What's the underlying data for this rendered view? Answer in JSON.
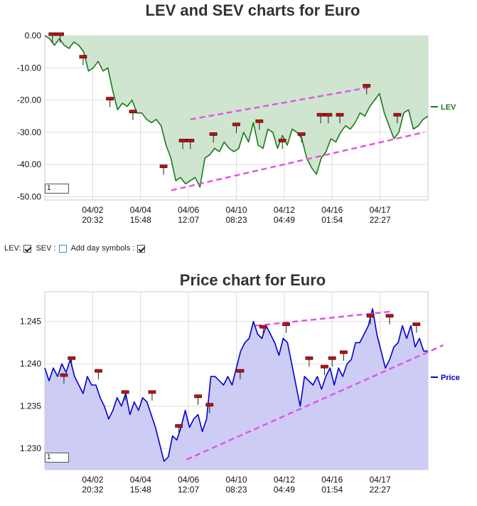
{
  "chart_data": [
    {
      "type": "line",
      "title": "LEV and SEV charts for Euro",
      "x_tick_labels": [
        [
          "04/02",
          "20:32"
        ],
        [
          "04/04",
          "15:48"
        ],
        [
          "04/06",
          "12:07"
        ],
        [
          "04/10",
          "08:23"
        ],
        [
          "04/12",
          "04:49"
        ],
        [
          "04/16",
          "01:54"
        ],
        [
          "04/17",
          "22:27"
        ]
      ],
      "y_tick_labels": [
        "0.00",
        "-10.00",
        "-20.00",
        "-30.00",
        "-40.00",
        "-50.00"
      ],
      "ylim": [
        -51,
        0
      ],
      "series": [
        {
          "name": "LEV",
          "color": "#1a7a1a",
          "fill": "#cfe5cf",
          "values": [
            0,
            -1,
            -3,
            -1,
            -3,
            -4,
            -2,
            -3,
            -5,
            -11,
            -10,
            -8,
            -11,
            -10,
            -17,
            -23,
            -21,
            -22,
            -20,
            -24,
            -24,
            -26,
            -27,
            -26,
            -28,
            -34,
            -38,
            -45,
            -44,
            -46,
            -45,
            -44,
            -47,
            -38,
            -37,
            -35,
            -36,
            -33,
            -35,
            -36,
            -35,
            -30,
            -33,
            -27,
            -34,
            -35,
            -29,
            -30,
            -35,
            -31,
            -34,
            -29,
            -30,
            -32,
            -38,
            -41,
            -43,
            -38,
            -36,
            -32,
            -33,
            -30,
            -28,
            -29,
            -27,
            -24,
            -25,
            -22,
            -20,
            -18,
            -24,
            -28,
            -32,
            -30,
            -24,
            -23,
            -29,
            -28,
            -26,
            -25
          ],
          "day_symbols": [
            [
              2,
              0
            ],
            [
              4,
              0
            ],
            [
              10,
              -7
            ],
            [
              17,
              -20
            ],
            [
              23,
              -24
            ],
            [
              31,
              -41
            ],
            [
              36,
              -33
            ],
            [
              38,
              -33
            ],
            [
              44,
              -31
            ],
            [
              50,
              -28
            ],
            [
              56,
              -27
            ],
            [
              62,
              -33
            ],
            [
              67,
              -31
            ],
            [
              72,
              -25
            ],
            [
              74,
              -25
            ],
            [
              77,
              -25
            ],
            [
              84,
              -16
            ],
            [
              92,
              -25
            ]
          ]
        }
      ],
      "trendlines": [
        {
          "from": [
            38,
            -26
          ],
          "to": [
            85,
            -16
          ]
        },
        {
          "from": [
            33,
            -48
          ],
          "to": [
            99,
            -30
          ]
        }
      ],
      "legend": {
        "position": "right",
        "label": "LEV"
      },
      "zoom_value": "1"
    },
    {
      "type": "line",
      "title": "Price chart for Euro",
      "x_tick_labels": [
        [
          "04/02",
          "20:32"
        ],
        [
          "04/04",
          "15:48"
        ],
        [
          "04/06",
          "12:07"
        ],
        [
          "04/10",
          "08:23"
        ],
        [
          "04/12",
          "04:49"
        ],
        [
          "04/16",
          "01:54"
        ],
        [
          "04/17",
          "22:27"
        ]
      ],
      "y_tick_labels": [
        "1.245",
        "1.240",
        "1.235",
        "1.230"
      ],
      "ylim": [
        1.2275,
        1.2485
      ],
      "series": [
        {
          "name": "Price",
          "color": "#0000cc",
          "fill": "#ccccf5",
          "values": [
            1.2395,
            1.238,
            1.2395,
            1.2385,
            1.24,
            1.239,
            1.2405,
            1.2385,
            1.2375,
            1.2365,
            1.2385,
            1.2375,
            1.2375,
            1.236,
            1.235,
            1.2335,
            1.2345,
            1.236,
            1.235,
            1.2365,
            1.234,
            1.2355,
            1.2345,
            1.236,
            1.2355,
            1.234,
            1.2325,
            1.2305,
            1.2285,
            1.229,
            1.2315,
            1.231,
            1.2325,
            1.2345,
            1.2325,
            1.2335,
            1.234,
            1.232,
            1.2335,
            1.2385,
            1.2385,
            1.238,
            1.2375,
            1.2385,
            1.2375,
            1.2395,
            1.2415,
            1.2425,
            1.243,
            1.245,
            1.2435,
            1.243,
            1.2445,
            1.2435,
            1.2425,
            1.241,
            1.243,
            1.2425,
            1.24,
            1.2375,
            1.235,
            1.2385,
            1.238,
            1.2375,
            1.2385,
            1.237,
            1.2385,
            1.2395,
            1.2375,
            1.2395,
            1.2385,
            1.24,
            1.2405,
            1.2425,
            1.2425,
            1.2435,
            1.2445,
            1.2465,
            1.2435,
            1.2415,
            1.2395,
            1.2405,
            1.242,
            1.2425,
            1.2445,
            1.243,
            1.2445,
            1.242,
            1.243,
            1.2415,
            1.2415
          ],
          "day_symbols": [
            [
              5,
              1.2385
            ],
            [
              7,
              1.2405
            ],
            [
              14,
              1.239
            ],
            [
              21,
              1.2365
            ],
            [
              28,
              1.2365
            ],
            [
              35,
              1.2325
            ],
            [
              40,
              1.236
            ],
            [
              43,
              1.235
            ],
            [
              51,
              1.239
            ],
            [
              57,
              1.2442
            ],
            [
              63,
              1.2445
            ],
            [
              69,
              1.2405
            ],
            [
              73,
              1.2395
            ],
            [
              75,
              1.2405
            ],
            [
              78,
              1.2412
            ],
            [
              85,
              1.2455
            ],
            [
              90,
              1.2455
            ],
            [
              97,
              1.2445
            ]
          ]
        }
      ],
      "trendlines": [
        {
          "from": [
            55,
            1.2445
          ],
          "to": [
            91,
            1.2462
          ]
        },
        {
          "from": [
            37,
            1.2287
          ],
          "to": [
            104,
            1.2422
          ]
        }
      ],
      "legend": {
        "position": "right",
        "label": "Price"
      },
      "zoom_value": "1"
    }
  ],
  "controls": {
    "lev_label": "LEV:",
    "sev_label": "SEV :",
    "day_symbols_label": "Add day symbols :",
    "lev_checked": true,
    "sev_checked": false,
    "day_symbols_checked": true
  }
}
